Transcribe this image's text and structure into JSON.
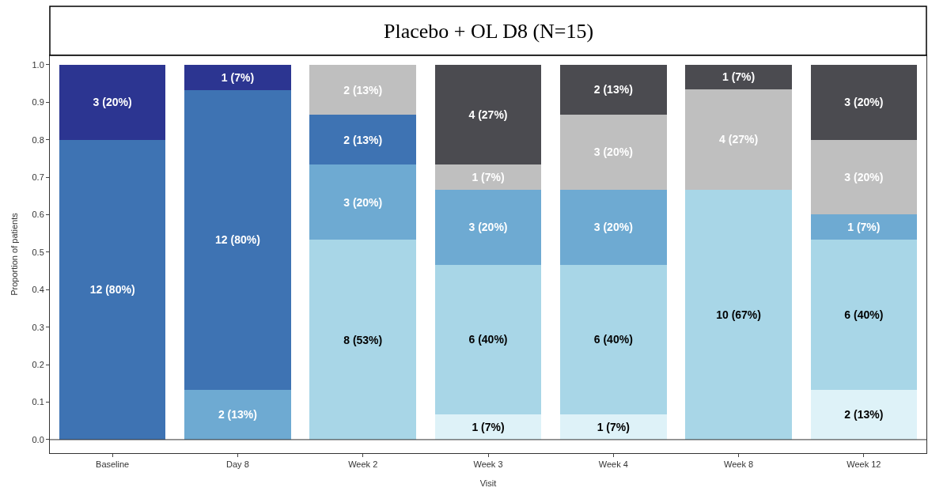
{
  "chart_data": {
    "type": "bar",
    "title": "Placebo + OL D8 (N=15)",
    "xlabel": "Visit",
    "ylabel": "Proportion of patients",
    "categories": [
      "Baseline",
      "Day 8",
      "Week 2",
      "Week 3",
      "Week 4",
      "Week 8",
      "Week 12"
    ],
    "stacked": true,
    "grid": false,
    "ref_lines": [
      {
        "axis": "y",
        "value": 0,
        "color": "#333333"
      }
    ],
    "ylim": [
      -0.036,
      1.025
    ],
    "yticks": [
      {
        "value": 0,
        "label": "0.0"
      },
      {
        "value": 0.1,
        "label": "0.1"
      },
      {
        "value": 0.2,
        "label": "0.2"
      },
      {
        "value": 0.3,
        "label": "0.3"
      },
      {
        "value": 0.4,
        "label": "0.4"
      },
      {
        "value": 0.5,
        "label": "0.5"
      },
      {
        "value": 0.6,
        "label": "0.6"
      },
      {
        "value": 0.7,
        "label": "0.7"
      },
      {
        "value": 0.8,
        "label": "0.8"
      },
      {
        "value": 0.9,
        "label": "0.9"
      },
      {
        "value": 1,
        "label": "1.0"
      }
    ],
    "series": [
      {
        "color": "#def2f8",
        "values": [
          null,
          null,
          null,
          0.067,
          0.067,
          null,
          0.133
        ],
        "value_labels": [
          null,
          null,
          null,
          "1 (7%)",
          "1 (7%)",
          null,
          "2 (13%)"
        ]
      },
      {
        "color": "#a8d6e7",
        "values": [
          null,
          null,
          0.533,
          0.4,
          0.4,
          0.667,
          0.4
        ],
        "value_labels": [
          null,
          null,
          "8 (53%)",
          "6 (40%)",
          "6 (40%)",
          "10 (67%)",
          "6 (40%)"
        ]
      },
      {
        "color": "#6eaad2",
        "values": [
          null,
          0.133,
          0.2,
          0.2,
          0.2,
          null,
          0.067
        ],
        "value_labels": [
          null,
          "2 (13%)",
          "3 (20%)",
          "3 (20%)",
          "3 (20%)",
          null,
          "1 (7%)"
        ]
      },
      {
        "color": "#3e73b3",
        "values": [
          0.8,
          0.8,
          0.133,
          null,
          null,
          null,
          null
        ],
        "value_labels": [
          "12 (80%)",
          "12 (80%)",
          "2 (13%)",
          null,
          null,
          null,
          null
        ]
      },
      {
        "color": "#2c3591",
        "values": [
          0.2,
          0.067,
          null,
          null,
          null,
          null,
          null
        ],
        "value_labels": [
          "3 (20%)",
          "1 (7%)",
          null,
          null,
          null,
          null,
          null
        ]
      },
      {
        "color": "#bfbfbf",
        "values": [
          null,
          null,
          0.133,
          0.067,
          0.2,
          0.267,
          0.2
        ],
        "value_labels": [
          null,
          null,
          "2 (13%)",
          "1 (7%)",
          "3 (20%)",
          "4 (27%)",
          "3 (20%)"
        ]
      },
      {
        "color": "#4b4b50",
        "values": [
          null,
          null,
          null,
          0.266,
          0.133,
          0.066,
          0.2
        ],
        "value_labels": [
          null,
          null,
          null,
          "4 (27%)",
          "2 (13%)",
          "1 (7%)",
          "3 (20%)"
        ]
      }
    ]
  }
}
